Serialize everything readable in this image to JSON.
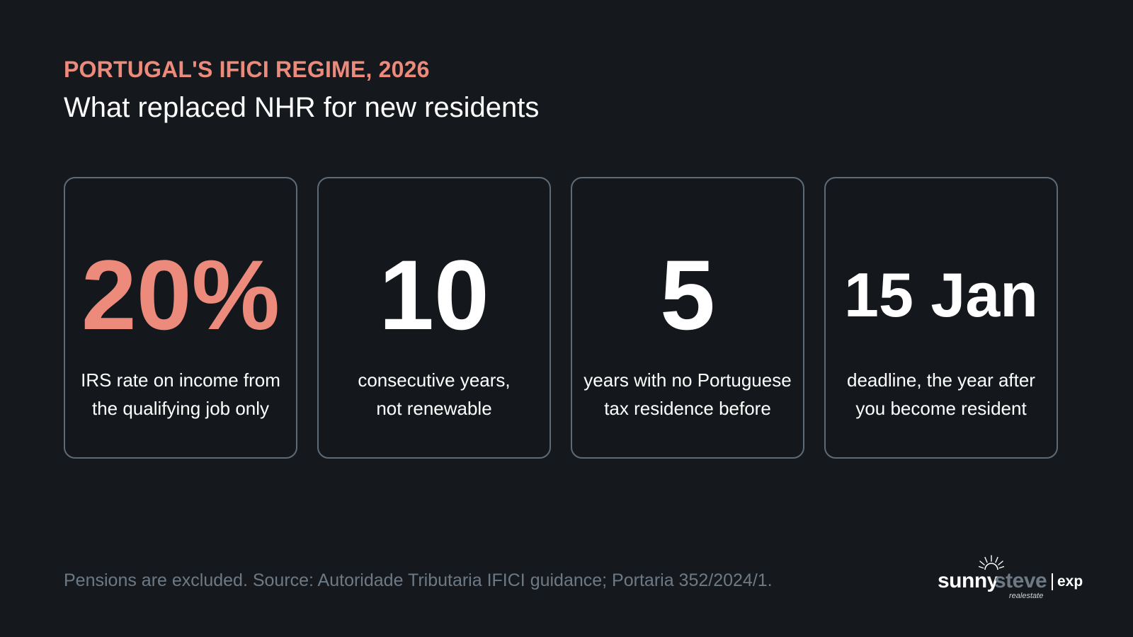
{
  "colors": {
    "background": "#15191d",
    "accent": "#ec8a7c",
    "card_border": "#5e6b77",
    "muted_text": "#6d7985"
  },
  "header": {
    "kicker": "PORTUGAL'S IFICI REGIME, 2026",
    "title": "What replaced NHR for new residents"
  },
  "cards": [
    {
      "value": "20%",
      "caption_lines": [
        "IRS rate on income from",
        "the qualifying job only"
      ]
    },
    {
      "value": "10",
      "caption_lines": [
        "consecutive years,",
        "not renewable"
      ]
    },
    {
      "value": "5",
      "caption_lines": [
        "years with no Portuguese",
        "tax residence before"
      ]
    },
    {
      "value": "15 Jan",
      "caption_lines": [
        "deadline, the year after",
        "you become resident"
      ]
    }
  ],
  "footer": {
    "note": "Pensions are excluded. Source: Autoridade Tributaria IFICI guidance; Portaria 352/2024/1."
  },
  "logo": {
    "word1": "sunny",
    "word2": "steve",
    "subtitle": "realestate",
    "partner": "exp",
    "icon": "sun-rays-icon"
  }
}
